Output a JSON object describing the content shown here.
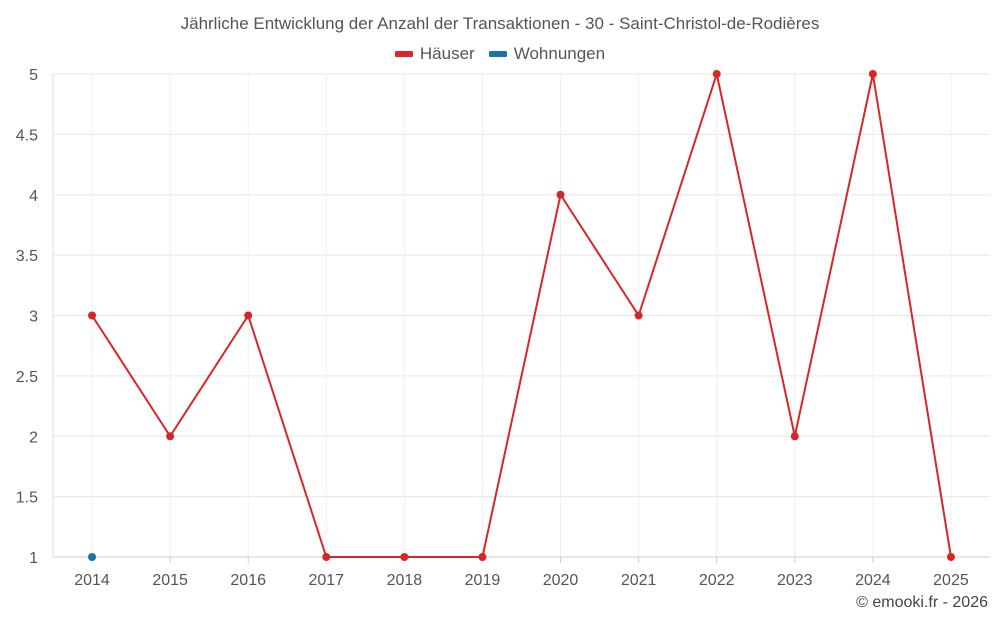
{
  "chart_data": {
    "type": "line",
    "title": "Jährliche Entwicklung der Anzahl der Transaktionen - 30 - Saint-Christol-de-Rodières",
    "x": [
      "2014",
      "2015",
      "2016",
      "2017",
      "2018",
      "2019",
      "2020",
      "2021",
      "2022",
      "2023",
      "2024",
      "2025"
    ],
    "series": [
      {
        "name": "Häuser",
        "color": "#d62728",
        "values": [
          3,
          2,
          3,
          1,
          1,
          1,
          4,
          3,
          5,
          2,
          5,
          1
        ]
      },
      {
        "name": "Wohnungen",
        "color": "#1f6fa8",
        "values": [
          1,
          null,
          null,
          null,
          null,
          null,
          null,
          null,
          null,
          null,
          null,
          null
        ]
      }
    ],
    "yticks": [
      "1",
      "1.5",
      "2",
      "2.5",
      "3",
      "3.5",
      "4",
      "4.5",
      "5"
    ],
    "ylim": [
      1,
      5
    ],
    "xlabel": "",
    "ylabel": "",
    "grid": true,
    "legend_position": "top-center"
  },
  "credit": "© emooki.fr - 2026"
}
